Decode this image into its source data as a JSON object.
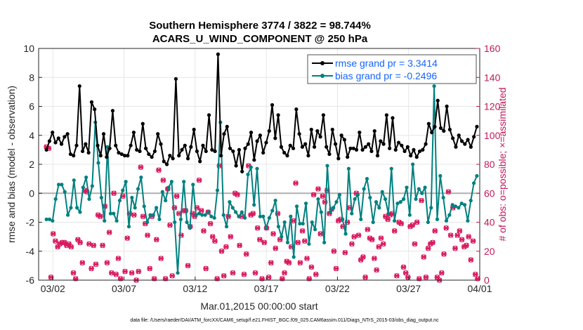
{
  "chart_data": {
    "type": "line",
    "title": "Southern Hemisphere 3774 / 3822 = 98.744%",
    "subtitle": "ACARS_U_WIND_COMPONENT @ 250 hPa",
    "xlabel": "Mar.01,2015 00:00:00 start",
    "ylabel": "rmse and bias (model - observation)",
    "ylabel_right": "# of obs: o=possible; ×=assimilated",
    "footnote": "data file: /Users/raeder/DAI/ATM_forcXX/CAM6_setup/f.e21.FHIST_BGC.f09_025.CAM6assim.011/Diags_NTrS_2015-03/obs_diag_output.nc",
    "xlim": [
      1,
      32
    ],
    "ylim": [
      -6,
      10
    ],
    "ylim_right": [
      0,
      160
    ],
    "x_ticks": [
      2,
      7,
      12,
      17,
      22,
      27,
      32
    ],
    "x_tick_labels": [
      "03/02",
      "03/07",
      "03/12",
      "03/17",
      "03/22",
      "03/27",
      "04/01"
    ],
    "y_ticks": [
      -6,
      -4,
      -2,
      0,
      2,
      4,
      6,
      8,
      10
    ],
    "y_ticks_right": [
      0,
      20,
      40,
      60,
      80,
      100,
      120,
      140,
      160
    ],
    "legend_position": "top-right",
    "colors": {
      "rmse": "#000000",
      "bias": "#008080",
      "obs": "#d81b60",
      "legend_text": "#1565ff",
      "zero_line": "#b0b0b0"
    },
    "series": [
      {
        "name": "rmse grand pr = 3.3414",
        "axis": "left",
        "values": [
          3.0,
          3.6,
          4.2,
          3.5,
          3.8,
          3.4,
          3.9,
          4.1,
          2.7,
          2.6,
          3.3,
          7.4,
          2.9,
          3.4,
          2.8,
          6.3,
          5.8,
          3.3,
          2.6,
          4.1,
          2.5,
          3.1,
          5.7,
          3.3,
          2.8,
          2.7,
          2.6,
          2.6,
          3.3,
          4.2,
          3.0,
          2.9,
          4.8,
          3.1,
          2.7,
          2.5,
          2.9,
          4.1,
          3.4,
          2.2,
          2.0,
          2.6,
          2.4,
          7.9,
          2.6,
          3.0,
          3.3,
          2.4,
          3.2,
          4.4,
          2.9,
          2.2,
          3.3,
          2.9,
          5.4,
          3.0,
          2.9,
          9.6,
          2.6,
          4.1,
          4.6,
          3.1,
          2.9,
          1.9,
          3.0,
          1.5,
          3.1,
          3.4,
          4.2,
          2.3,
          3.6,
          4.0,
          2.8,
          3.5,
          4.3,
          6.1,
          3.8,
          5.4,
          3.2,
          2.8,
          2.6,
          3.3,
          3.1,
          5.8,
          4.1,
          3.2,
          3.4,
          2.6,
          4.4,
          3.2,
          4.3,
          3.9,
          5.4,
          3.2,
          2.7,
          4.4,
          3.4,
          2.4,
          4.0,
          3.7,
          2.5,
          3.1,
          3.1,
          3.0,
          4.2,
          3.0,
          3.2,
          3.4,
          2.9,
          4.3,
          2.6,
          3.6,
          3.4,
          5.4,
          3.1,
          5.2,
          3.0,
          3.5,
          3.3,
          2.9,
          3.2,
          2.6,
          3.0,
          2.5,
          2.9,
          3.0,
          3.4,
          4.8,
          4.2,
          4.6,
          6.4,
          4.5,
          4.3,
          6.0,
          4.4,
          3.8,
          3.2,
          4.0,
          3.6,
          3.4,
          3.7,
          3.2,
          3.9,
          4.6
        ]
      },
      {
        "name": "bias grand pr = -0.2496",
        "axis": "left",
        "values": [
          -1.8,
          -1.8,
          -1.9,
          -0.4,
          0.6,
          0.6,
          0.1,
          -1.5,
          -1.0,
          0.9,
          -1.0,
          -1.3,
          0.4,
          1.1,
          -0.4,
          0.5,
          4.9,
          2.1,
          -0.3,
          -1.9,
          3.2,
          -1.4,
          -1.4,
          -1.9,
          -0.5,
          0.2,
          0.8,
          -2.3,
          -0.3,
          -1.0,
          0.3,
          1.1,
          -0.9,
          -2.0,
          -1.5,
          -1.5,
          -1.0,
          -1.8,
          0.1,
          -0.5,
          0.4,
          0.8,
          -2.0,
          -5.5,
          -1.8,
          0.8,
          -2.0,
          -2.4,
          0.6,
          -1.5,
          -1.4,
          -1.5,
          -1.5,
          -1.3,
          -1.6,
          -1.7,
          0.2,
          4.9,
          -1.5,
          -2.3,
          -0.6,
          -1.0,
          -1.3,
          -1.6,
          -1.3,
          -1.7,
          1.3,
          1.8,
          -0.8,
          1.7,
          -1.6,
          -1.6,
          -2.4,
          -1.7,
          -1.2,
          -0.5,
          -2.3,
          -3.0,
          -2.0,
          -3.4,
          -1.6,
          -4.4,
          -0.9,
          -2.1,
          -2.1,
          -0.7,
          -3.5,
          -2.0,
          -2.5,
          -0.4,
          -1.3,
          -3.4,
          1.9,
          -1.3,
          -1.0,
          -0.6,
          -0.1,
          -1.8,
          -2.8,
          1.7,
          -1.4,
          -0.4,
          -0.1,
          -1.8,
          0.3,
          1.0,
          -0.3,
          -2.0,
          -0.6,
          -1.0,
          0.1,
          -0.4,
          -1.4,
          1.7,
          -1.9,
          -0.7,
          -0.6,
          -0.4,
          0.4,
          -1.5,
          2.0,
          -0.4,
          0.3,
          0.0,
          0.4,
          -2.0,
          -1.0,
          7.4,
          -1.8,
          1.2,
          -0.3,
          -1.9,
          -1.5,
          -0.8,
          -0.9,
          -1.0,
          -0.7,
          -0.8,
          -1.9,
          -0.5,
          0.7,
          1.2
        ]
      },
      {
        "name": "observations (o=possible; ×=assimilated)",
        "axis": "right",
        "values": [
          92,
          91,
          2,
          32,
          27,
          23,
          25,
          26,
          26,
          24,
          25,
          23,
          5,
          1,
          28,
          26,
          12,
          62,
          61,
          25,
          8,
          24,
          11,
          45,
          44,
          24,
          51,
          12,
          33,
          5,
          60,
          4,
          15,
          1,
          58,
          6,
          29,
          46,
          5,
          45,
          0,
          6,
          78,
          44,
          39,
          31,
          8,
          44,
          1,
          28,
          76,
          15,
          69,
          1,
          63,
          38,
          3,
          50,
          58,
          46,
          31,
          48,
          48,
          10,
          37,
          46,
          44,
          50,
          69,
          48,
          34,
          8,
          47,
          39,
          30,
          27,
          1,
          79,
          20,
          3,
          23,
          44,
          30,
          5,
          60,
          59,
          24,
          44,
          4,
          18,
          79,
          45,
          46,
          5,
          36,
          28,
          1,
          26,
          36,
          2,
          12,
          32,
          22,
          46,
          28,
          1,
          5,
          13,
          12,
          23,
          41,
          67,
          26,
          12,
          34,
          27,
          15,
          1,
          9,
          59,
          4,
          63,
          32,
          58,
          54,
          62,
          46,
          49,
          20,
          8,
          41,
          42,
          37,
          19,
          40,
          50,
          25,
          30,
          60,
          31,
          14,
          16,
          2,
          35,
          29,
          28,
          15,
          7,
          23,
          29,
          25,
          44,
          42,
          45,
          46,
          34,
          3,
          40,
          39,
          9,
          5,
          2,
          37,
          38,
          25,
          40,
          1,
          55,
          16,
          2,
          22,
          25,
          26,
          34,
          2,
          0,
          5,
          18,
          36,
          61,
          31,
          50,
          22,
          31,
          34,
          28,
          23,
          24,
          30,
          14,
          27,
          4,
          1
        ]
      }
    ]
  }
}
